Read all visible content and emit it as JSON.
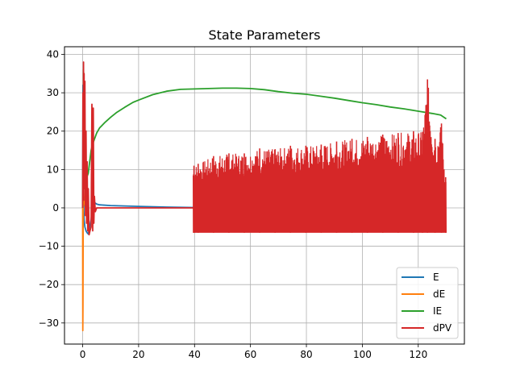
{
  "chart_data": {
    "type": "line",
    "title": "State Parameters",
    "xlabel": "",
    "ylabel": "",
    "xlim": [
      -6.5,
      136.5
    ],
    "ylim": [
      -35.5,
      42.0
    ],
    "xticks": [
      0,
      20,
      40,
      60,
      80,
      100,
      120
    ],
    "yticks": [
      -30,
      -20,
      -10,
      0,
      10,
      20,
      30,
      40
    ],
    "grid": true,
    "legend_position": "lower-right",
    "series": [
      {
        "name": "E",
        "color": "#1f77b4",
        "x": [
          0,
          0.1,
          0.2,
          0.3,
          0.5,
          0.8,
          1.2,
          1.6,
          2.0,
          2.5,
          3.0,
          3.5,
          4.0,
          5.0,
          6.0,
          10,
          20,
          30,
          39.5
        ],
        "y": [
          0,
          32,
          12,
          2,
          -3,
          -5,
          -6,
          -6.5,
          -6.8,
          -5,
          -3,
          0,
          1.5,
          1,
          0.8,
          0.6,
          0.4,
          0.2,
          0.1
        ]
      },
      {
        "name": "dE",
        "color": "#ff7f0e",
        "x": [
          0,
          0.05,
          0.1,
          0.15,
          0.2,
          0.3,
          0.5,
          0.8,
          1.2
        ],
        "y": [
          0,
          -32,
          -25,
          -10,
          20,
          5,
          2,
          0.5,
          0
        ]
      },
      {
        "name": "IE",
        "color": "#2ca02c",
        "x": [
          0,
          0.3,
          0.6,
          1.0,
          1.5,
          2.0,
          2.5,
          3.0,
          3.5,
          4,
          5,
          6,
          8,
          10,
          12,
          15,
          18,
          20,
          25,
          30,
          35,
          40,
          45,
          50,
          55,
          60,
          65,
          70,
          75,
          80,
          85,
          90,
          95,
          100,
          105,
          110,
          115,
          120,
          125,
          128,
          130
        ],
        "y": [
          0,
          36,
          20,
          10,
          8,
          9,
          12,
          15,
          16.5,
          17.5,
          19.5,
          20.8,
          22.3,
          23.6,
          24.8,
          26.2,
          27.5,
          28.1,
          29.5,
          30.4,
          30.9,
          31.0,
          31.1,
          31.2,
          31.2,
          31.1,
          30.8,
          30.3,
          29.9,
          29.6,
          29.1,
          28.6,
          28.0,
          27.4,
          26.9,
          26.3,
          25.8,
          25.2,
          24.6,
          24.2,
          23.2
        ]
      },
      {
        "name": "dPV",
        "color": "#d62728",
        "x": [
          0,
          0.1,
          0.2,
          0.3,
          0.4,
          0.5,
          0.6,
          0.8,
          1.0,
          1.2,
          1.4,
          1.6,
          1.8,
          2.0,
          2.3,
          2.6,
          3.0,
          3.3,
          3.6,
          3.8,
          4.0,
          4.2,
          4.5,
          5.0,
          6.0,
          10,
          20,
          30,
          39.5
        ],
        "y": [
          0,
          30,
          8,
          38,
          2,
          35,
          5,
          33,
          -2,
          20,
          -4,
          12,
          -6,
          5,
          -7,
          -6,
          -5,
          27,
          -6,
          26,
          -4,
          3,
          -1,
          0,
          0,
          0,
          0,
          0,
          0
        ]
      }
    ],
    "dPV_burst": {
      "x_start": 39.5,
      "x_end": 130,
      "low": -6.5,
      "peaks_x": [
        39.8,
        41.3,
        46.8,
        52.3,
        57.8,
        63.3,
        68.8,
        74.3,
        79.8,
        85.3,
        90.8,
        96.3,
        101.8,
        107.3,
        112.8,
        118.3,
        121.5,
        123.3,
        126.0,
        128.3,
        129.8
      ],
      "peaks_y": [
        11,
        11.5,
        13.5,
        14.2,
        14.2,
        15.5,
        15.3,
        16.2,
        16.2,
        16.5,
        17.3,
        18.0,
        18.5,
        19.1,
        19.5,
        20.0,
        19.8,
        33.5,
        18.0,
        22.0,
        8.0
      ]
    }
  }
}
